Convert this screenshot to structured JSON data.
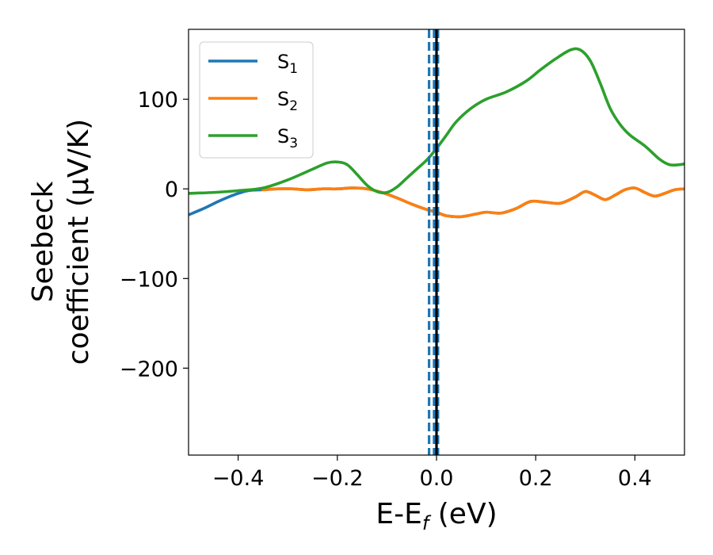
{
  "chart_data": {
    "type": "line",
    "xlabel": {
      "main": "E-E",
      "sub": "f",
      "rest": " (eV)"
    },
    "ylabel": {
      "line1": "Seebeck",
      "line2": "coefficient  (μV/K)"
    },
    "xlim": [
      -0.5,
      0.5
    ],
    "ylim": [
      -297,
      178
    ],
    "xticks": [
      -0.4,
      -0.2,
      0.0,
      0.2,
      0.4
    ],
    "xtick_labels": [
      "−0.4",
      "−0.2",
      "0.0",
      "0.2",
      "0.4"
    ],
    "yticks": [
      100,
      0,
      -100,
      -200
    ],
    "ytick_labels": [
      "100",
      "0",
      "−100",
      "−200"
    ],
    "grid": false,
    "legend_position": "top-left",
    "series": [
      {
        "name": "S",
        "sub": "1",
        "color": "#1f77b4",
        "x": [
          -0.5,
          -0.47,
          -0.44,
          -0.41,
          -0.38,
          -0.35,
          -0.32,
          -0.29,
          -0.26,
          -0.23,
          -0.2,
          -0.17,
          -0.14,
          -0.11,
          -0.08,
          -0.05,
          -0.02,
          0.0,
          0.02,
          0.05,
          0.08,
          0.1,
          0.13,
          0.16,
          0.19,
          0.22,
          0.25,
          0.28,
          0.3,
          0.32,
          0.34,
          0.36,
          0.38,
          0.4,
          0.42,
          0.44,
          0.46,
          0.48,
          0.5
        ],
        "y": [
          -29,
          -22,
          -14,
          -7,
          -2,
          -1,
          0,
          0,
          -1,
          0,
          0,
          1,
          0,
          -4,
          -10,
          -17,
          -23,
          -26,
          -30,
          -31,
          -28,
          -26,
          -27,
          -22,
          -14,
          -15,
          -16,
          -9,
          -3,
          -7,
          -12,
          -7,
          -1,
          1,
          -4,
          -8,
          -5,
          -1,
          0
        ]
      },
      {
        "name": "S",
        "sub": "2",
        "color": "#ff7f0e",
        "x": [
          -0.35,
          -0.32,
          -0.29,
          -0.26,
          -0.23,
          -0.2,
          -0.17,
          -0.14,
          -0.11,
          -0.08,
          -0.05,
          -0.02,
          0.0,
          0.02,
          0.05,
          0.08,
          0.1,
          0.13,
          0.16,
          0.19,
          0.22,
          0.25,
          0.28,
          0.3,
          0.32,
          0.34,
          0.36,
          0.38,
          0.4,
          0.42,
          0.44,
          0.46,
          0.48,
          0.5
        ],
        "y": [
          -1,
          0,
          0,
          -1,
          0,
          0,
          1,
          0,
          -4,
          -10,
          -17,
          -23,
          -26,
          -30,
          -31,
          -28,
          -26,
          -27,
          -22,
          -14,
          -15,
          -16,
          -9,
          -3,
          -7,
          -12,
          -7,
          -1,
          1,
          -4,
          -8,
          -5,
          -1,
          0
        ]
      },
      {
        "name": "S",
        "sub": "3",
        "color": "#2ca02c",
        "x": [
          -0.5,
          -0.45,
          -0.4,
          -0.35,
          -0.3,
          -0.25,
          -0.22,
          -0.2,
          -0.18,
          -0.16,
          -0.14,
          -0.12,
          -0.1,
          -0.08,
          -0.06,
          -0.04,
          -0.02,
          0.0,
          0.02,
          0.04,
          0.07,
          0.1,
          0.14,
          0.18,
          0.21,
          0.24,
          0.27,
          0.29,
          0.31,
          0.33,
          0.35,
          0.37,
          0.39,
          0.42,
          0.45,
          0.47,
          0.49,
          0.5
        ],
        "y": [
          -5,
          -4,
          -2,
          1,
          10,
          22,
          29,
          30,
          27,
          16,
          4,
          -3,
          -4,
          2,
          12,
          22,
          32,
          45,
          60,
          75,
          90,
          100,
          108,
          120,
          133,
          145,
          155,
          155,
          143,
          118,
          90,
          72,
          60,
          48,
          33,
          27,
          27,
          28
        ]
      }
    ],
    "vlines": [
      {
        "x": -0.015,
        "style": "dashed",
        "color": "#1f77b4"
      },
      {
        "x": 0.003,
        "style": "dashed",
        "color": "#1f77b4"
      },
      {
        "x": -0.005,
        "style": "dashed",
        "color": "#1f77b4"
      },
      {
        "x": 0.0,
        "style": "solid",
        "color": "#000000"
      }
    ]
  }
}
